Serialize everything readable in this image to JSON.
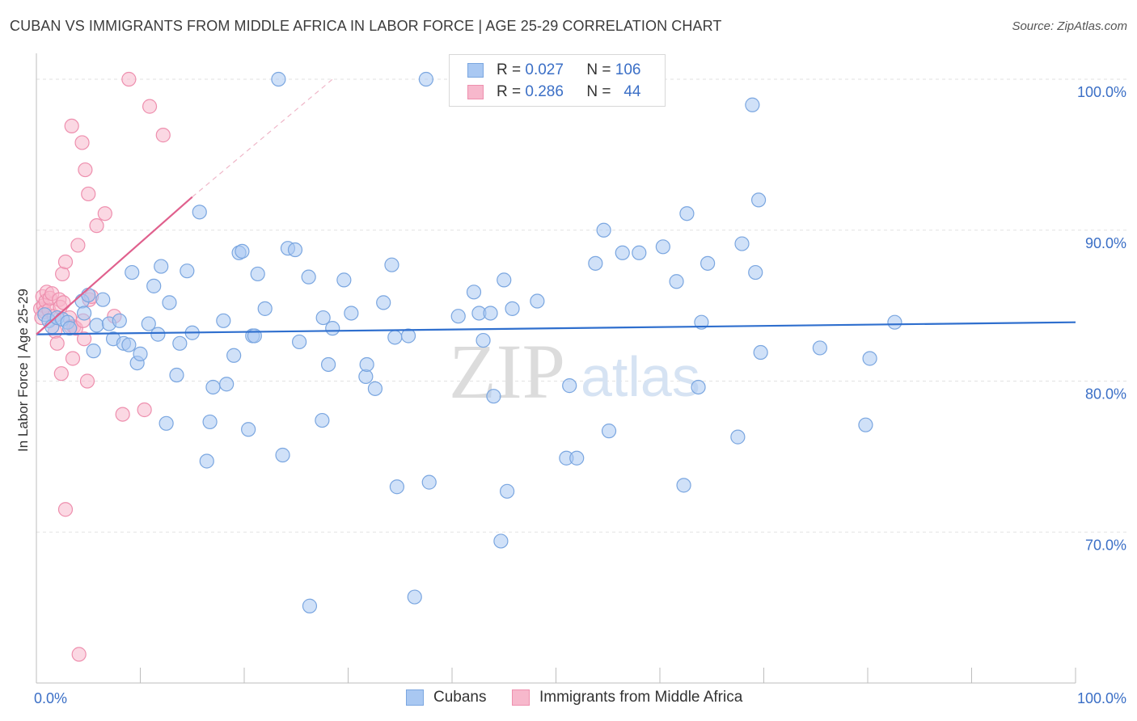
{
  "title": "CUBAN VS IMMIGRANTS FROM MIDDLE AFRICA IN LABOR FORCE | AGE 25-29 CORRELATION CHART",
  "source": "Source: ZipAtlas.com",
  "legend": {
    "r_label": "R =",
    "n_label": "N =",
    "series1": {
      "r": "0.027",
      "n": "106"
    },
    "series2": {
      "r": "0.286",
      "n": "44"
    }
  },
  "bottom_legend": {
    "series1": "Cubans",
    "series2": "Immigrants from Middle Africa"
  },
  "colors": {
    "cubans_fill": "#a9c8f2",
    "cubans_stroke": "#7aa6e0",
    "cubans_line": "#2f6fce",
    "africa_fill": "#f7b8cc",
    "africa_stroke": "#ee8fae",
    "africa_line": "#e0608d",
    "axis_text": "#3b6fc6"
  },
  "watermark": {
    "zip": "ZIP",
    "atlas": "atlas"
  },
  "chart_data": {
    "type": "scatter",
    "title": "CUBAN VS IMMIGRANTS FROM MIDDLE AFRICA IN LABOR FORCE | AGE 25-29 CORRELATION CHART",
    "xlabel": "",
    "ylabel": "In Labor Force | Age 25-29",
    "xlim": [
      0,
      100
    ],
    "ylim": [
      60,
      101.5
    ],
    "x_tick_labels": [
      "0.0%",
      "100.0%"
    ],
    "y_ticks": [
      {
        "value": 70,
        "label": "70.0%"
      },
      {
        "value": 80,
        "label": "80.0%"
      },
      {
        "value": 90,
        "label": "90.0%"
      },
      {
        "value": 100,
        "label": "100.0%"
      }
    ],
    "series": [
      {
        "name": "Cubans",
        "r": 0.027,
        "n": 106,
        "trend": {
          "x": [
            0,
            100
          ],
          "y": [
            83.1,
            83.9
          ],
          "style": "solid"
        },
        "points": [
          [
            0.8,
            84.4
          ],
          [
            1.2,
            84.0
          ],
          [
            1.5,
            83.6
          ],
          [
            2.0,
            84.2
          ],
          [
            2.5,
            84.1
          ],
          [
            3.0,
            83.9
          ],
          [
            3.2,
            83.5
          ],
          [
            4.4,
            85.3
          ],
          [
            4.6,
            84.5
          ],
          [
            5.0,
            85.7
          ],
          [
            5.5,
            82.0
          ],
          [
            5.8,
            83.7
          ],
          [
            6.4,
            85.4
          ],
          [
            7.0,
            83.8
          ],
          [
            7.4,
            82.8
          ],
          [
            8.0,
            84.0
          ],
          [
            8.4,
            82.5
          ],
          [
            8.9,
            82.4
          ],
          [
            9.2,
            87.2
          ],
          [
            9.7,
            81.2
          ],
          [
            10.0,
            81.8
          ],
          [
            10.8,
            83.8
          ],
          [
            11.3,
            86.3
          ],
          [
            11.7,
            83.1
          ],
          [
            12.0,
            87.6
          ],
          [
            12.5,
            77.2
          ],
          [
            12.8,
            85.2
          ],
          [
            13.5,
            80.4
          ],
          [
            13.8,
            82.5
          ],
          [
            14.5,
            87.3
          ],
          [
            15.0,
            83.2
          ],
          [
            15.7,
            91.2
          ],
          [
            16.4,
            74.7
          ],
          [
            16.7,
            77.3
          ],
          [
            17.0,
            79.6
          ],
          [
            18.0,
            84.0
          ],
          [
            18.3,
            79.8
          ],
          [
            19.0,
            81.7
          ],
          [
            19.5,
            88.5
          ],
          [
            19.8,
            88.6
          ],
          [
            20.4,
            76.8
          ],
          [
            20.8,
            83.0
          ],
          [
            21.0,
            83.0
          ],
          [
            21.3,
            87.1
          ],
          [
            22.0,
            84.8
          ],
          [
            23.3,
            100.0
          ],
          [
            23.7,
            75.1
          ],
          [
            24.2,
            88.8
          ],
          [
            24.9,
            88.7
          ],
          [
            25.3,
            82.6
          ],
          [
            26.2,
            86.9
          ],
          [
            26.3,
            65.1
          ],
          [
            27.5,
            77.4
          ],
          [
            27.6,
            84.2
          ],
          [
            28.1,
            81.1
          ],
          [
            28.5,
            83.5
          ],
          [
            29.6,
            86.7
          ],
          [
            30.3,
            84.5
          ],
          [
            31.7,
            80.3
          ],
          [
            31.8,
            81.1
          ],
          [
            32.6,
            79.5
          ],
          [
            33.4,
            85.2
          ],
          [
            34.2,
            87.7
          ],
          [
            34.5,
            82.9
          ],
          [
            34.7,
            73.0
          ],
          [
            35.8,
            83.0
          ],
          [
            36.4,
            65.7
          ],
          [
            37.5,
            100.0
          ],
          [
            37.8,
            73.3
          ],
          [
            40.6,
            84.3
          ],
          [
            42.1,
            85.9
          ],
          [
            42.6,
            84.5
          ],
          [
            43.0,
            82.7
          ],
          [
            43.7,
            84.5
          ],
          [
            44.0,
            79.0
          ],
          [
            44.7,
            69.4
          ],
          [
            45.0,
            86.7
          ],
          [
            45.3,
            72.7
          ],
          [
            45.8,
            84.8
          ],
          [
            48.2,
            85.3
          ],
          [
            51.0,
            74.9
          ],
          [
            51.3,
            79.7
          ],
          [
            52.0,
            74.9
          ],
          [
            53.8,
            87.8
          ],
          [
            54.6,
            90.0
          ],
          [
            55.1,
            76.7
          ],
          [
            56.4,
            88.5
          ],
          [
            58.0,
            88.5
          ],
          [
            60.3,
            88.9
          ],
          [
            61.6,
            86.6
          ],
          [
            62.3,
            73.1
          ],
          [
            62.6,
            91.1
          ],
          [
            63.7,
            79.6
          ],
          [
            64.0,
            83.9
          ],
          [
            64.6,
            87.8
          ],
          [
            67.5,
            76.3
          ],
          [
            67.9,
            89.1
          ],
          [
            68.9,
            98.3
          ],
          [
            69.2,
            87.2
          ],
          [
            69.5,
            92.0
          ],
          [
            69.7,
            81.9
          ],
          [
            75.4,
            82.2
          ],
          [
            79.8,
            77.1
          ],
          [
            80.2,
            81.5
          ],
          [
            82.6,
            83.9
          ]
        ]
      },
      {
        "name": "Immigrants from Middle Africa",
        "r": 0.286,
        "n": 44,
        "trend": {
          "x": [
            0,
            15
          ],
          "y": [
            83.1,
            92.2
          ],
          "style": "solid",
          "dashed_extension_to": [
            28.5,
            100
          ]
        },
        "points": [
          [
            0.4,
            84.8
          ],
          [
            0.5,
            84.2
          ],
          [
            0.6,
            85.6
          ],
          [
            0.7,
            85.0
          ],
          [
            0.8,
            84.6
          ],
          [
            0.9,
            85.3
          ],
          [
            1.0,
            85.9
          ],
          [
            1.2,
            84.7
          ],
          [
            1.3,
            85.5
          ],
          [
            1.5,
            85.8
          ],
          [
            1.7,
            84.3
          ],
          [
            1.8,
            83.3
          ],
          [
            2.0,
            82.5
          ],
          [
            2.2,
            85.4
          ],
          [
            2.3,
            84.9
          ],
          [
            2.4,
            80.5
          ],
          [
            2.5,
            87.1
          ],
          [
            2.6,
            85.2
          ],
          [
            2.8,
            87.9
          ],
          [
            3.2,
            84.2
          ],
          [
            3.3,
            83.6
          ],
          [
            3.4,
            96.9
          ],
          [
            3.5,
            81.5
          ],
          [
            3.6,
            83.6
          ],
          [
            3.8,
            83.5
          ],
          [
            4.0,
            89.0
          ],
          [
            4.1,
            61.9
          ],
          [
            4.4,
            95.8
          ],
          [
            4.5,
            84.0
          ],
          [
            4.6,
            82.8
          ],
          [
            4.7,
            94.0
          ],
          [
            4.9,
            80.0
          ],
          [
            5.0,
            92.4
          ],
          [
            5.1,
            85.4
          ],
          [
            5.3,
            85.6
          ],
          [
            5.8,
            90.3
          ],
          [
            6.6,
            91.1
          ],
          [
            7.5,
            84.3
          ],
          [
            8.3,
            77.8
          ],
          [
            8.9,
            100.0
          ],
          [
            10.4,
            78.1
          ],
          [
            10.9,
            98.2
          ],
          [
            12.2,
            96.3
          ],
          [
            2.8,
            71.5
          ]
        ]
      }
    ]
  }
}
